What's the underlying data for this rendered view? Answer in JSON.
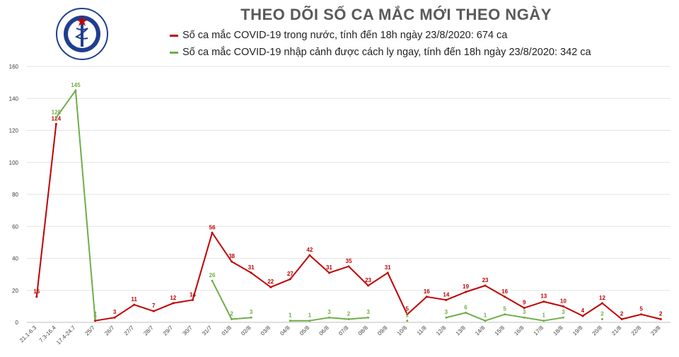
{
  "header": {
    "title": "THEO DÕI SỐ CA MẮC MỚI THEO NGÀY",
    "logo_top_text": "BỘ Y TẾ",
    "logo_bottom_text": "MINISTRY OF HEALTH"
  },
  "legend": [
    {
      "label": "Số ca mắc COVID-19 trong nước, tính đến 18h ngày 23/8/2020: 674 ca",
      "color": "#c00000"
    },
    {
      "label": "Số ca mắc COVID-19 nhập cảnh được cách ly ngay, tính đến 18h ngày 23/8/2020: 342 ca",
      "color": "#70ad47"
    }
  ],
  "chart_data": {
    "type": "line",
    "title": "THEO DÕI SỐ CA MẮC MỚI THEO NGÀY",
    "xlabel": "",
    "ylabel": "",
    "ylim": [
      0,
      160
    ],
    "yticks": [
      0,
      20,
      40,
      60,
      80,
      100,
      120,
      140,
      160
    ],
    "grid": true,
    "legend_position": "top",
    "categories": [
      "21.1-6.3",
      "7.3-16.4",
      "17.4-24.7",
      "25/7",
      "26/7",
      "27/7",
      "28/7",
      "29/7",
      "30/7",
      "31/7",
      "01/8",
      "02/8",
      "03/8",
      "04/8",
      "05/8",
      "06/8",
      "07/8",
      "08/8",
      "09/8",
      "10/8",
      "11/8",
      "12/8",
      "13/8",
      "14/8",
      "15/8",
      "16/8",
      "17/8",
      "18/8",
      "19/8",
      "20/8",
      "21/8",
      "22/8",
      "23/8"
    ],
    "series": [
      {
        "name": "Số ca mắc COVID-19 trong nước, tính đến 18h ngày 23/8/2020: 674 ca",
        "color": "#c00000",
        "values": [
          16,
          124,
          null,
          1,
          3,
          11,
          7,
          12,
          14,
          56,
          38,
          31,
          22,
          27,
          42,
          31,
          35,
          23,
          31,
          5,
          16,
          14,
          19,
          23,
          16,
          9,
          13,
          10,
          4,
          12,
          2,
          5,
          2
        ]
      },
      {
        "name": "Số ca mắc COVID-19 nhập cảnh được cách ly ngay, tính đến 18h ngày 23/8/2020: 342 ca",
        "color": "#70ad47",
        "values": [
          null,
          128,
          145,
          2,
          null,
          null,
          null,
          null,
          null,
          26,
          2,
          3,
          null,
          1,
          1,
          3,
          2,
          3,
          null,
          1,
          null,
          3,
          6,
          1,
          5,
          3,
          1,
          3,
          null,
          2,
          null,
          null,
          null
        ]
      }
    ]
  }
}
